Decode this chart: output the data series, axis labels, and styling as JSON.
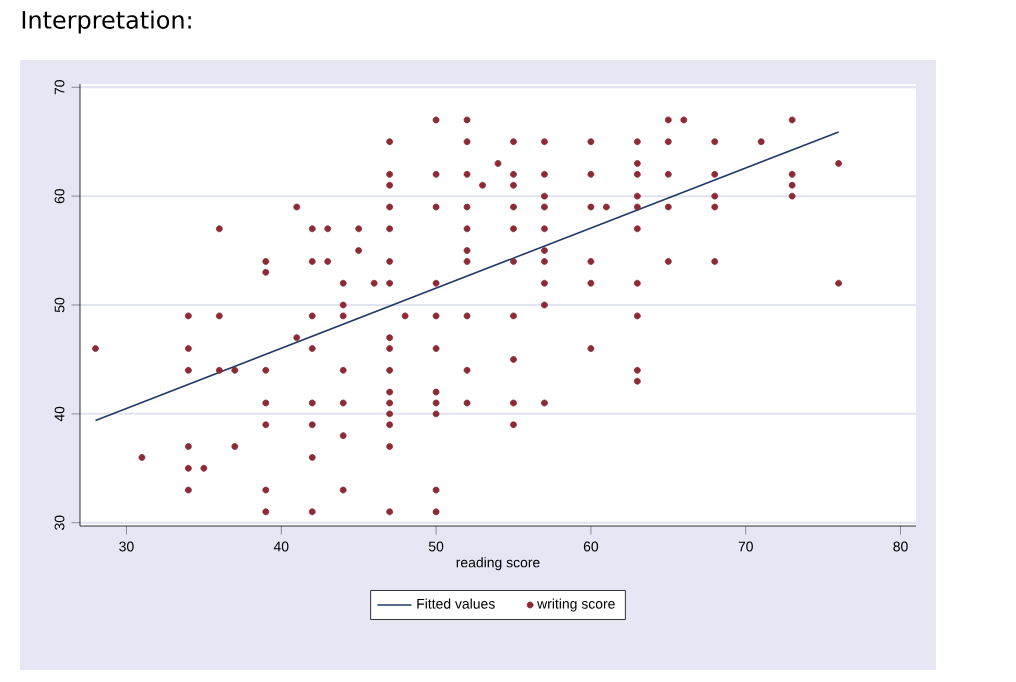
{
  "chart_data": {
    "type": "scatter",
    "title": "Interpretation:",
    "xlabel": "reading score",
    "xlim": [
      27,
      81
    ],
    "ylim": [
      29.7,
      70.3
    ],
    "xticks": [
      30,
      40,
      50,
      60,
      70,
      80
    ],
    "yticks": [
      30,
      40,
      50,
      60,
      70
    ],
    "grid": "y",
    "legend": "bottom",
    "series": [
      {
        "name": "Fitted values",
        "type": "line",
        "color": "#1f3a66",
        "x": [
          28,
          76
        ],
        "values": [
          39.4,
          65.9
        ]
      },
      {
        "name": "writing score",
        "marker": "circle",
        "color": "#8c2a36",
        "x": [
          28,
          31,
          34,
          34,
          34,
          34,
          34,
          34,
          35,
          36,
          36,
          36,
          37,
          37,
          39,
          39,
          39,
          39,
          39,
          39,
          39,
          41,
          41,
          42,
          42,
          42,
          42,
          42,
          42,
          42,
          42,
          43,
          43,
          44,
          44,
          44,
          44,
          44,
          44,
          44,
          45,
          45,
          46,
          47,
          47,
          47,
          47,
          47,
          47,
          47,
          47,
          47,
          47,
          47,
          47,
          47,
          47,
          47,
          47,
          48,
          50,
          50,
          50,
          50,
          50,
          50,
          50,
          50,
          50,
          50,
          50,
          52,
          52,
          52,
          52,
          52,
          52,
          52,
          52,
          52,
          52,
          53,
          54,
          55,
          55,
          55,
          55,
          55,
          55,
          55,
          55,
          55,
          55,
          57,
          57,
          57,
          57,
          57,
          57,
          57,
          57,
          57,
          57,
          60,
          60,
          60,
          60,
          60,
          60,
          61,
          63,
          63,
          63,
          63,
          63,
          63,
          63,
          63,
          63,
          63,
          65,
          65,
          65,
          65,
          65,
          66,
          68,
          68,
          68,
          68,
          68,
          71,
          73,
          73,
          73,
          73,
          76,
          76
        ],
        "values": [
          46,
          36,
          49,
          46,
          44,
          37,
          35,
          33,
          35,
          57,
          49,
          44,
          44,
          37,
          54,
          53,
          44,
          41,
          39,
          33,
          31,
          59,
          47,
          57,
          54,
          49,
          46,
          41,
          39,
          36,
          31,
          57,
          54,
          52,
          50,
          49,
          44,
          41,
          38,
          33,
          57,
          55,
          52,
          65,
          62,
          61,
          59,
          57,
          54,
          52,
          47,
          46,
          44,
          42,
          41,
          40,
          39,
          37,
          31,
          49,
          67,
          62,
          59,
          52,
          49,
          46,
          42,
          41,
          40,
          33,
          31,
          67,
          65,
          62,
          59,
          57,
          55,
          54,
          49,
          44,
          41,
          61,
          63,
          65,
          62,
          61,
          59,
          57,
          54,
          49,
          45,
          41,
          39,
          65,
          62,
          60,
          59,
          57,
          55,
          54,
          52,
          50,
          41,
          65,
          62,
          59,
          54,
          52,
          46,
          59,
          65,
          63,
          62,
          60,
          59,
          57,
          52,
          49,
          44,
          43,
          67,
          65,
          62,
          59,
          54,
          67,
          65,
          62,
          60,
          59,
          54,
          65,
          67,
          62,
          61,
          60,
          63,
          52
        ]
      }
    ]
  }
}
